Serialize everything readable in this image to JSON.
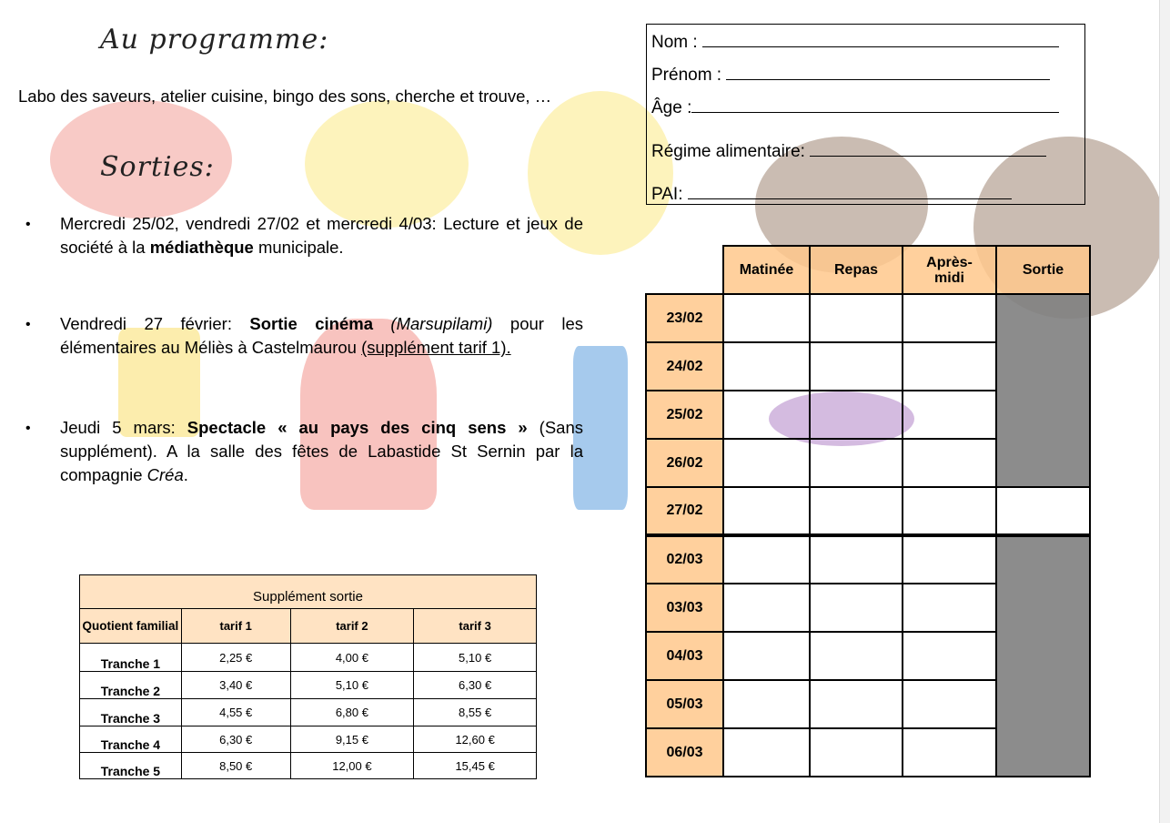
{
  "program": {
    "heading": "Au programme:",
    "text": "Labo des saveurs, atelier cuisine, bingo des sons, cherche et trouve, …"
  },
  "outings": {
    "heading": "Sorties:",
    "items": [
      {
        "pre": "Mercredi 25/02, vendredi 27/02 et mercredi 4/03: Lecture et jeux de société à la ",
        "bold": "médiathèque",
        "post": " municipale."
      },
      {
        "pre": "Vendredi 27 février: ",
        "bold": "Sortie cinéma",
        "italic": " (Marsupilami)",
        "mid": " pour les élémentaires au Méliès à Castelmaurou ",
        "underline": "(supplément tarif 1)."
      },
      {
        "pre": "Jeudi 5 mars: ",
        "bold": "Spectacle « au pays des cinq sens »",
        "mid": " (Sans supplément). A la salle des fêtes de Labastide St Sernin par la compagnie ",
        "italic": "Créa",
        "post": "."
      }
    ]
  },
  "form": {
    "nom": "Nom :",
    "prenom": "Prénom :",
    "age": "Âge :",
    "regime": "Régime alimentaire:",
    "pai": "PAI:"
  },
  "schedule": {
    "columns": [
      "Matinée",
      "Repas",
      "Après-midi",
      "Sortie"
    ],
    "dates_week1": [
      "23/02",
      "24/02",
      "25/02",
      "26/02",
      "27/02"
    ],
    "dates_week2": [
      "02/03",
      "03/03",
      "04/03",
      "05/03",
      "06/03"
    ]
  },
  "supplement": {
    "title": "Supplément sortie",
    "headers": [
      "Quotient familial",
      "tarif 1",
      "tarif 2",
      "tarif 3"
    ],
    "rows": [
      [
        "Tranche 1",
        "2,25 €",
        "4,00 €",
        "5,10 €"
      ],
      [
        "Tranche 2",
        "3,40 €",
        "5,10 €",
        "6,30 €"
      ],
      [
        "Tranche 3",
        "4,55 €",
        "6,80 €",
        "8,55 €"
      ],
      [
        "Tranche 4",
        "6,30 €",
        "9,15 €",
        "12,60 €"
      ],
      [
        "Tranche 5",
        "8,50 €",
        "12,00 €",
        "15,45 €"
      ]
    ]
  },
  "colors": {
    "header_fill": "#ffc98c",
    "sortie_fill": "#808080"
  }
}
